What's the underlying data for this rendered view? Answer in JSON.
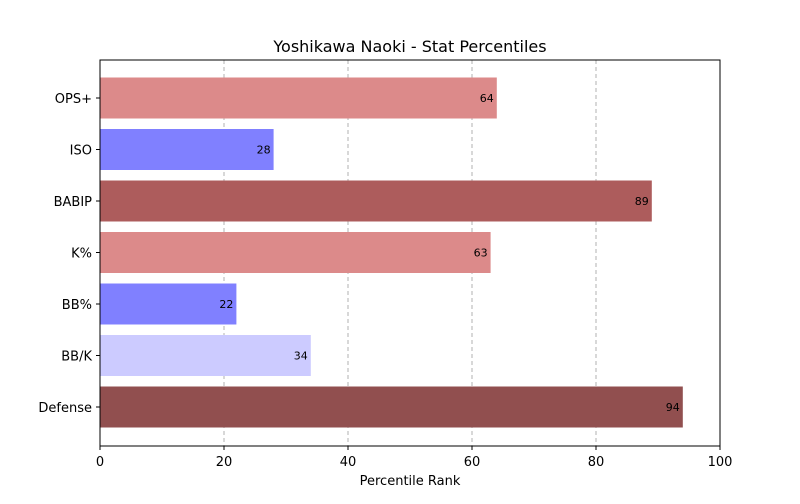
{
  "chart_data": {
    "type": "bar",
    "orientation": "horizontal",
    "title": "Yoshikawa Naoki - Stat Percentiles",
    "xlabel": "Percentile Rank",
    "ylabel": "",
    "xlim": [
      0,
      100
    ],
    "xticks": [
      0,
      20,
      40,
      60,
      80,
      100
    ],
    "grid": "x-dashed",
    "categories": [
      "OPS+",
      "ISO",
      "BABIP",
      "K%",
      "BB%",
      "BB/K",
      "Defense"
    ],
    "values": [
      64,
      28,
      89,
      63,
      22,
      34,
      94
    ],
    "colors": [
      "#dc8a8a",
      "#8080ff",
      "#ad5c5c",
      "#dc8a8a",
      "#8080ff",
      "#cccbff",
      "#914f4f"
    ]
  }
}
